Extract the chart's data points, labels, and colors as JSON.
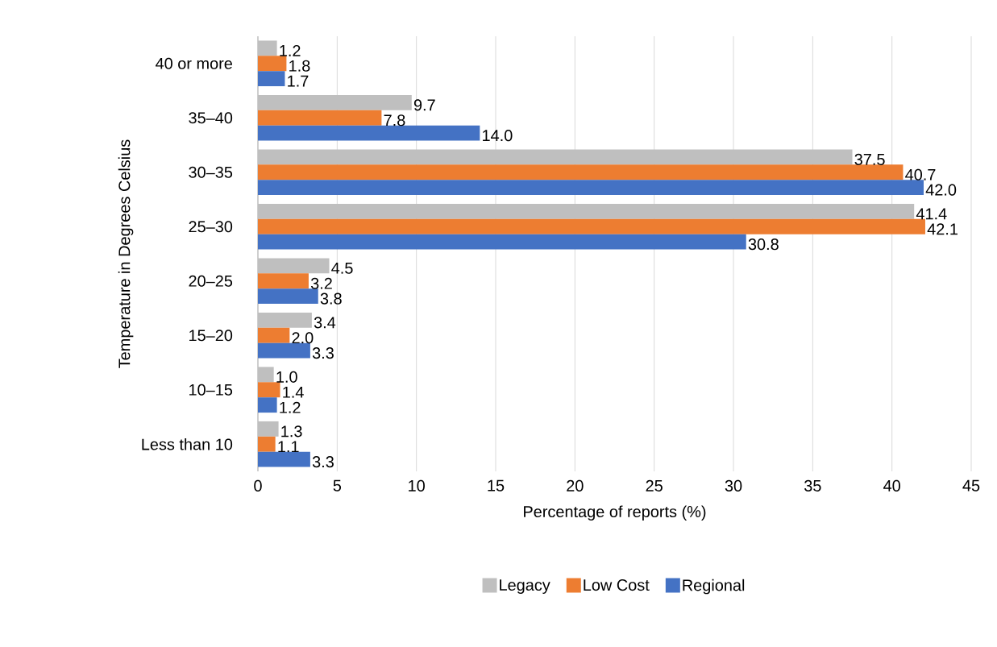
{
  "chart_data": {
    "type": "bar",
    "orientation": "horizontal",
    "xlabel": "Percentage of reports (%)",
    "ylabel": "Temperature in Degrees Celsius",
    "categories": [
      "40 or more",
      "35–40",
      "30–35",
      "25–30",
      "20–25",
      "15–20",
      "10–15",
      "Less than 10"
    ],
    "series": [
      {
        "name": "Legacy",
        "color": "#bfbfbf",
        "values": [
          1.2,
          9.7,
          37.5,
          41.4,
          4.5,
          3.4,
          1.0,
          1.3
        ],
        "value_labels": [
          "1.2",
          "9.7",
          "37.5",
          "41.4",
          "4.5",
          "3.4",
          "1.0",
          "1.3"
        ]
      },
      {
        "name": "Low Cost",
        "color": "#ed7d31",
        "values": [
          1.8,
          7.8,
          40.7,
          42.1,
          3.2,
          2.0,
          1.4,
          1.1
        ],
        "value_labels": [
          "1.8",
          "7.8",
          "40.7",
          "42.1",
          "3.2",
          "2.0",
          "1.4",
          "1.1"
        ]
      },
      {
        "name": "Regional",
        "color": "#4472c4",
        "values": [
          1.7,
          14.0,
          42.0,
          30.8,
          3.8,
          3.3,
          1.2,
          3.3
        ],
        "value_labels": [
          "1.7",
          "14.0",
          "42.0",
          "30.8",
          "3.8",
          "3.3",
          "1.2",
          "3.3"
        ]
      }
    ],
    "xlim": [
      0,
      45
    ],
    "xticks": [
      0,
      5,
      10,
      15,
      20,
      25,
      30,
      35,
      40,
      45
    ],
    "grid": "x",
    "legend": "bottom"
  }
}
